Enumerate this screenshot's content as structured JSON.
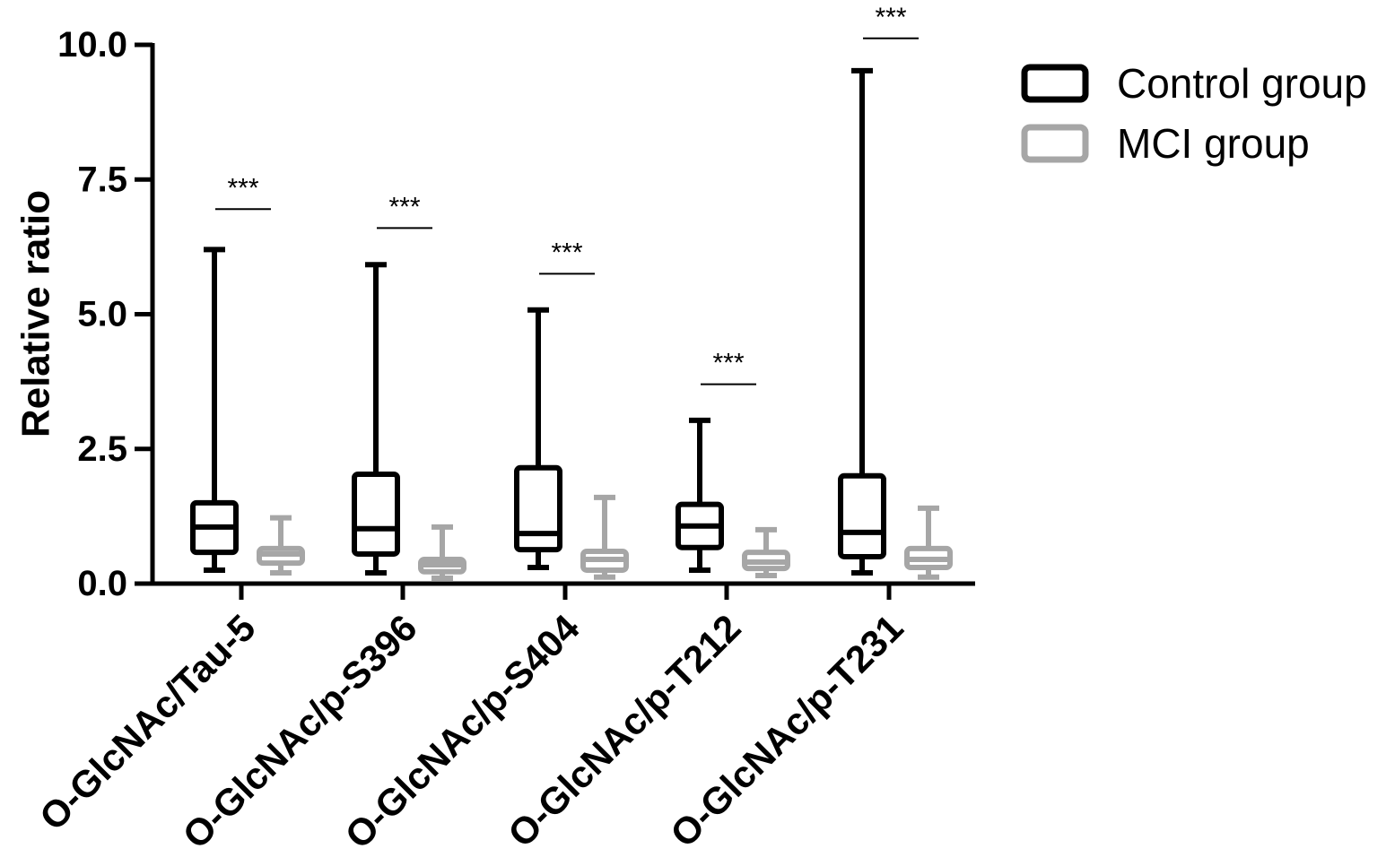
{
  "chart_data": {
    "type": "box",
    "ylabel": "Relative ratio",
    "ylim": [
      0,
      10
    ],
    "yticks": [
      "0.0",
      "2.5",
      "5.0",
      "7.5",
      "10.0"
    ],
    "categories": [
      "O-GlcNAc/Tau-5",
      "O-GlcNAc/p-S396",
      "O-GlcNAc/p-S404",
      "O-GlcNAc/p-T212",
      "O-GlcNAc/p-T231"
    ],
    "legend_position": "top-right",
    "series": [
      {
        "name": "Control group",
        "color": "#000000",
        "boxes": [
          {
            "min": 0.25,
            "q1": 0.58,
            "median": 1.05,
            "q3": 1.5,
            "max": 6.2
          },
          {
            "min": 0.2,
            "q1": 0.55,
            "median": 1.02,
            "q3": 2.03,
            "max": 5.92
          },
          {
            "min": 0.3,
            "q1": 0.63,
            "median": 0.93,
            "q3": 2.15,
            "max": 5.08
          },
          {
            "min": 0.25,
            "q1": 0.67,
            "median": 1.07,
            "q3": 1.47,
            "max": 3.03
          },
          {
            "min": 0.2,
            "q1": 0.5,
            "median": 0.95,
            "q3": 2.0,
            "max": 9.52
          }
        ]
      },
      {
        "name": "MCI group",
        "color": "#a6a6a6",
        "boxes": [
          {
            "min": 0.2,
            "q1": 0.38,
            "median": 0.55,
            "q3": 0.65,
            "max": 1.22
          },
          {
            "min": 0.1,
            "q1": 0.22,
            "median": 0.35,
            "q3": 0.45,
            "max": 1.05
          },
          {
            "min": 0.12,
            "q1": 0.25,
            "median": 0.45,
            "q3": 0.6,
            "max": 1.6
          },
          {
            "min": 0.15,
            "q1": 0.28,
            "median": 0.4,
            "q3": 0.58,
            "max": 1.0
          },
          {
            "min": 0.12,
            "q1": 0.3,
            "median": 0.45,
            "q3": 0.65,
            "max": 1.4
          }
        ]
      }
    ],
    "annotations": [
      {
        "category": 0,
        "text": "***",
        "y": 6.95
      },
      {
        "category": 1,
        "text": "***",
        "y": 6.6
      },
      {
        "category": 2,
        "text": "***",
        "y": 5.75
      },
      {
        "category": 3,
        "text": "***",
        "y": 3.7
      },
      {
        "category": 4,
        "text": "***",
        "y": 10.12
      }
    ]
  }
}
